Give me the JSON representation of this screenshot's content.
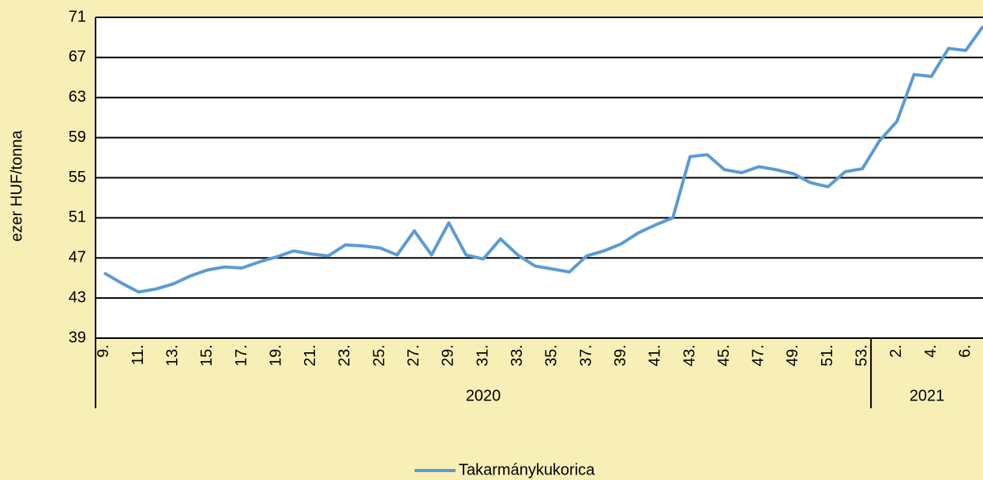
{
  "chart_data": {
    "type": "line",
    "y_label": "ezer HUF/tonna",
    "categories": [
      "9.",
      null,
      "11.",
      null,
      "13.",
      null,
      "15.",
      null,
      "17.",
      null,
      "19.",
      null,
      "21.",
      null,
      "23.",
      null,
      "25.",
      null,
      "27.",
      null,
      "29.",
      null,
      "31.",
      null,
      "33.",
      null,
      "35.",
      null,
      "37.",
      null,
      "39.",
      null,
      "41.",
      null,
      "43.",
      null,
      "45.",
      null,
      "47.",
      null,
      "49.",
      null,
      "51.",
      null,
      "53.",
      null,
      "2.",
      null,
      "4.",
      null,
      "6.",
      null
    ],
    "groups": [
      {
        "label": "2020",
        "start": 0,
        "end": 44
      },
      {
        "label": "2021",
        "start": 45,
        "end": 51
      }
    ],
    "series": [
      {
        "name": "Takarmánykukorica",
        "color": "#5b9bd5",
        "values": [
          45.5,
          44.5,
          43.6,
          43.9,
          44.4,
          45.2,
          45.8,
          46.1,
          46.0,
          46.6,
          47.1,
          47.7,
          47.4,
          47.2,
          48.3,
          48.2,
          48.0,
          47.3,
          49.7,
          47.3,
          50.5,
          47.3,
          46.9,
          48.9,
          47.3,
          46.2,
          45.9,
          45.6,
          47.2,
          47.7,
          48.4,
          49.5,
          50.3,
          51.0,
          57.1,
          57.3,
          55.8,
          55.5,
          56.1,
          55.8,
          55.4,
          54.5,
          54.1,
          55.6,
          55.9,
          58.7,
          60.6,
          65.3,
          65.1,
          67.9,
          67.7,
          70.1
        ]
      }
    ],
    "ylim": [
      39,
      71
    ],
    "yticks": [
      39,
      43,
      47,
      51,
      55,
      59,
      63,
      67,
      71
    ],
    "grid": true,
    "legend": "bottom"
  }
}
